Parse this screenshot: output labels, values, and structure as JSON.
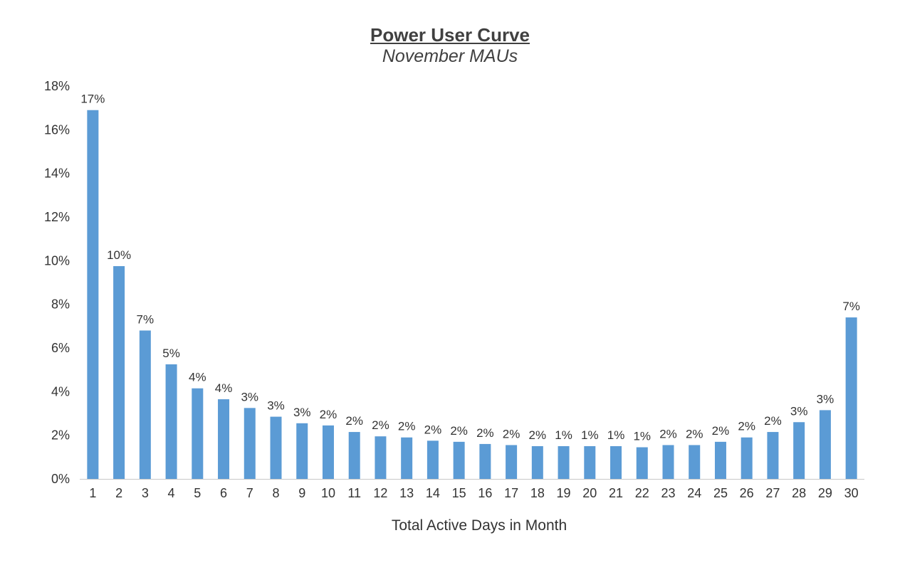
{
  "chart_data": {
    "type": "bar",
    "title": "Power User Curve",
    "subtitle": "November MAUs",
    "xlabel": "Total Active Days in Month",
    "ylabel": "",
    "ylim": [
      0,
      18
    ],
    "yticks": [
      "0%",
      "2%",
      "4%",
      "6%",
      "8%",
      "10%",
      "12%",
      "14%",
      "16%",
      "18%"
    ],
    "grid": false,
    "bar_color": "#5B9BD5",
    "categories": [
      "1",
      "2",
      "3",
      "4",
      "5",
      "6",
      "7",
      "8",
      "9",
      "10",
      "11",
      "12",
      "13",
      "14",
      "15",
      "16",
      "17",
      "18",
      "19",
      "20",
      "21",
      "22",
      "23",
      "24",
      "25",
      "26",
      "27",
      "28",
      "29",
      "30"
    ],
    "values": [
      16.9,
      9.75,
      6.8,
      5.25,
      4.15,
      3.65,
      3.25,
      2.85,
      2.55,
      2.45,
      2.15,
      1.95,
      1.9,
      1.75,
      1.7,
      1.6,
      1.55,
      1.5,
      1.5,
      1.5,
      1.5,
      1.45,
      1.55,
      1.55,
      1.7,
      1.9,
      2.15,
      2.6,
      3.15,
      7.4
    ],
    "data_labels": [
      "17%",
      "10%",
      "7%",
      "5%",
      "4%",
      "4%",
      "3%",
      "3%",
      "3%",
      "2%",
      "2%",
      "2%",
      "2%",
      "2%",
      "2%",
      "2%",
      "2%",
      "2%",
      "1%",
      "1%",
      "1%",
      "1%",
      "2%",
      "2%",
      "2%",
      "2%",
      "2%",
      "3%",
      "3%",
      "7%"
    ]
  }
}
